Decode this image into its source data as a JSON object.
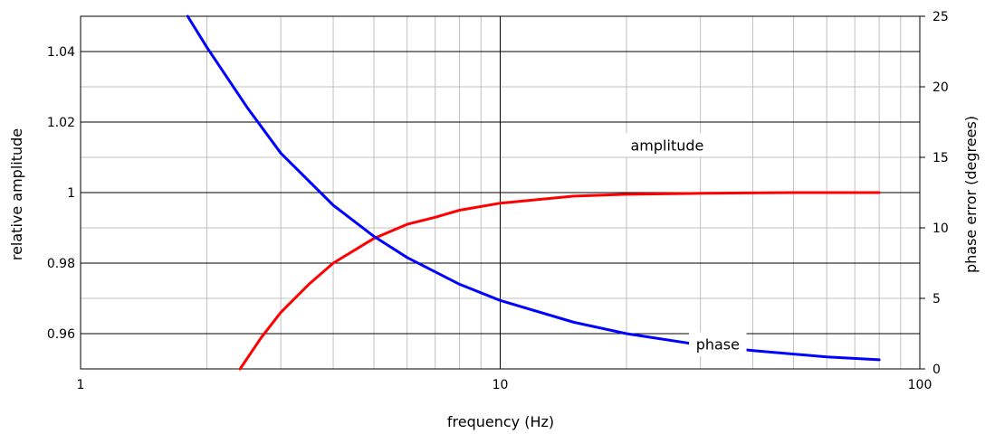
{
  "chart_data": {
    "type": "line",
    "xlabel": "frequency (Hz)",
    "ylabel_left": "relative amplitude",
    "ylabel_right": "phase error (degrees)",
    "xscale": "log",
    "xlim": [
      1,
      100
    ],
    "ylim_left": [
      0.95,
      1.05
    ],
    "ylim_right": [
      0,
      25
    ],
    "x_ticks": [
      1,
      10,
      100
    ],
    "x_tick_labels": [
      "1",
      "10",
      "100"
    ],
    "y_left_ticks": [
      0.96,
      0.98,
      1,
      1.02,
      1.04
    ],
    "y_left_tick_labels": [
      "0.96",
      "0.98",
      "1",
      "1.02",
      "1.04"
    ],
    "y_right_ticks": [
      0,
      5,
      10,
      15,
      20,
      25
    ],
    "y_right_tick_labels": [
      "0",
      "5",
      "10",
      "15",
      "20",
      "25"
    ],
    "grid": true,
    "series": [
      {
        "name": "amplitude",
        "axis": "left",
        "color": "#ff0000",
        "x": [
          2.4,
          2.7,
          3,
          3.5,
          4,
          5,
          6,
          7,
          8,
          10,
          15,
          20,
          30,
          50,
          80
        ],
        "y": [
          0.95,
          0.959,
          0.966,
          0.974,
          0.98,
          0.987,
          0.991,
          0.993,
          0.995,
          0.997,
          0.999,
          0.9995,
          0.9998,
          1.0,
          1.0
        ]
      },
      {
        "name": "phase",
        "axis": "right",
        "color": "#0000ff",
        "x": [
          1.8,
          2,
          2.5,
          3,
          4,
          5,
          6,
          8,
          10,
          15,
          20,
          30,
          40,
          60,
          80
        ],
        "y": [
          25,
          22.8,
          18.5,
          15.3,
          11.6,
          9.4,
          7.9,
          6.0,
          4.85,
          3.3,
          2.5,
          1.7,
          1.3,
          0.85,
          0.65
        ]
      }
    ]
  }
}
